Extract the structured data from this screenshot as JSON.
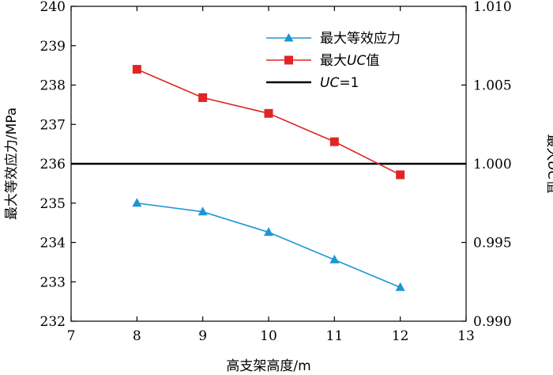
{
  "chart_data": {
    "type": "line",
    "x": [
      8,
      9,
      10,
      11,
      12
    ],
    "xlim": [
      7,
      13
    ],
    "xticks": [
      7,
      8,
      9,
      10,
      11,
      12,
      13
    ],
    "xlabel": "高支架高度/m",
    "ylabel_left": "最大等效应力/MPa",
    "ylim_left": [
      232,
      240
    ],
    "yticks_left": [
      232,
      233,
      234,
      235,
      236,
      237,
      238,
      239,
      240
    ],
    "ylabel_right_prefix": "最大",
    "ylabel_right_italic": "UC",
    "ylabel_right_suffix": "值",
    "ylim_right": [
      0.99,
      1.01
    ],
    "yticks_right": [
      "0.990",
      "0.995",
      "1.000",
      "1.005",
      "1.010"
    ],
    "series": [
      {
        "name": "最大等效应力",
        "axis": "left",
        "color": "#1c97d4",
        "marker": "triangle",
        "values": [
          235.0,
          234.78,
          234.26,
          233.56,
          232.86
        ]
      },
      {
        "name": "最大UC值",
        "axis": "right",
        "color": "#e02525",
        "marker": "square",
        "values": [
          1.006,
          1.0042,
          1.0032,
          1.0014,
          0.9993
        ]
      }
    ],
    "reference_line": {
      "name": "UC=1",
      "axis": "right",
      "value": 1.0,
      "color": "#000000"
    },
    "legend": {
      "position": "top-right",
      "items": [
        {
          "label": "最大等效应力",
          "marker": "triangle",
          "color": "#1c97d4"
        },
        {
          "label_prefix": "最大",
          "label_italic": "UC",
          "label_suffix": "值",
          "marker": "square",
          "color": "#e02525"
        },
        {
          "label_italic": "UC",
          "label_suffix": "=1",
          "marker": "none",
          "color": "#000000"
        }
      ]
    }
  }
}
